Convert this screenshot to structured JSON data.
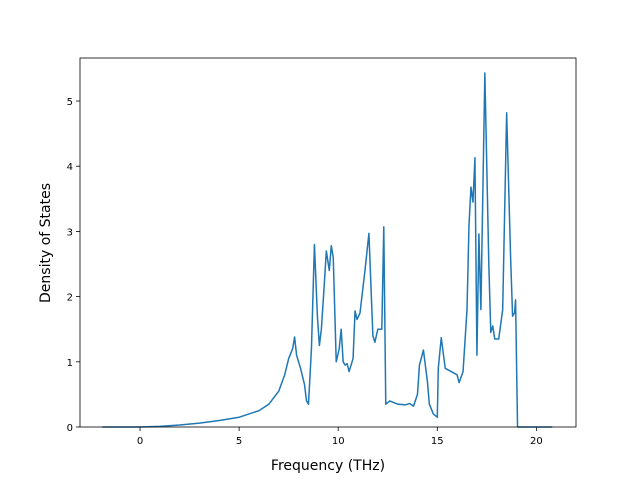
{
  "chart_data": {
    "type": "line",
    "xlabel": "Frequency (THz)",
    "ylabel": "Density of States",
    "x": [
      -1.9,
      0,
      1,
      2,
      3,
      4,
      5,
      6,
      6.5,
      7,
      7.3,
      7.5,
      7.7,
      7.8,
      7.9,
      8.1,
      8.3,
      8.4,
      8.5,
      8.65,
      8.8,
      8.95,
      9.05,
      9.15,
      9.3,
      9.4,
      9.55,
      9.65,
      9.75,
      9.9,
      10.05,
      10.15,
      10.25,
      10.35,
      10.45,
      10.55,
      10.75,
      10.85,
      10.95,
      11.1,
      11.35,
      11.55,
      11.75,
      11.85,
      12.0,
      12.2,
      12.3,
      12.4,
      12.6,
      13.0,
      13.4,
      13.6,
      13.8,
      14.0,
      14.1,
      14.3,
      14.5,
      14.6,
      14.8,
      15.0,
      15.05,
      15.2,
      15.4,
      16.0,
      16.1,
      16.3,
      16.5,
      16.6,
      16.7,
      16.8,
      16.9,
      17.0,
      17.1,
      17.2,
      17.4,
      17.6,
      17.7,
      17.8,
      17.9,
      18.1,
      18.3,
      18.5,
      18.7,
      18.8,
      18.9,
      18.95,
      19.05,
      20.8
    ],
    "values": [
      0,
      0,
      0.01,
      0.03,
      0.06,
      0.1,
      0.15,
      0.25,
      0.35,
      0.55,
      0.8,
      1.05,
      1.2,
      1.38,
      1.1,
      0.9,
      0.65,
      0.4,
      0.35,
      1.2,
      2.8,
      1.7,
      1.25,
      1.5,
      2.2,
      2.7,
      2.4,
      2.78,
      2.6,
      1.0,
      1.2,
      1.5,
      1.0,
      0.95,
      0.97,
      0.85,
      1.05,
      1.78,
      1.65,
      1.75,
      2.4,
      2.97,
      1.4,
      1.3,
      1.5,
      1.5,
      3.07,
      0.35,
      0.4,
      0.35,
      0.34,
      0.36,
      0.32,
      0.5,
      0.95,
      1.18,
      0.7,
      0.35,
      0.2,
      0.15,
      0.9,
      1.37,
      0.9,
      0.8,
      0.68,
      0.85,
      1.8,
      3.1,
      3.68,
      3.45,
      4.13,
      1.1,
      2.96,
      1.8,
      5.43,
      2.5,
      1.45,
      1.55,
      1.35,
      1.35,
      1.8,
      4.82,
      2.6,
      1.7,
      1.75,
      1.95,
      0,
      0
    ],
    "color": "#1f77b4",
    "xlim": [
      -3.03,
      22.0
    ],
    "ylim": [
      0,
      5.66
    ],
    "xticks": [
      0,
      5,
      10,
      15,
      20
    ],
    "yticks": [
      0,
      1,
      2,
      3,
      4,
      5
    ]
  }
}
